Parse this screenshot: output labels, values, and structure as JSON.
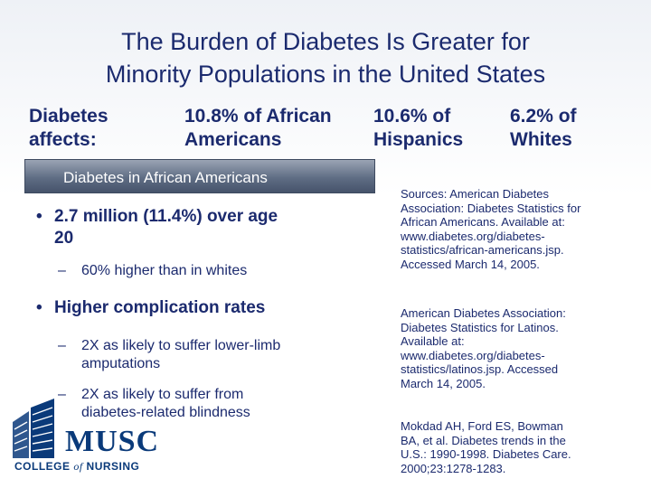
{
  "title": {
    "line1": "The Burden of Diabetes Is Greater for",
    "line2": "Minority Populations in the United States"
  },
  "stats": {
    "lead_line1": "Diabetes",
    "lead_line2": "affects:",
    "african_line1": "10.8% of African",
    "african_line2": "Americans",
    "hispanic_line1": "10.6% of",
    "hispanic_line2": "Hispanics",
    "white_line1": "6.2% of",
    "white_line2": "Whites"
  },
  "banner": {
    "label": "Diabetes in African Americans"
  },
  "bullets": [
    {
      "dot": "•",
      "line1": "2.7 million (11.4%) over age",
      "line2": "20",
      "subs": [
        {
          "dash": "–",
          "line1": "60% higher than in whites"
        }
      ]
    },
    {
      "dot": "•",
      "line1": "Higher complication rates",
      "subs": [
        {
          "dash": "–",
          "line1": "2X as likely to suffer lower-limb",
          "line2": "amputations"
        },
        {
          "dash": "–",
          "line1": "2X as likely to suffer from",
          "line2": "diabetes-related blindness"
        }
      ]
    }
  ],
  "sources": [
    {
      "lines": [
        "Sources: American Diabetes",
        "Association: Diabetes Statistics for",
        "African Americans. Available at:",
        "www.diabetes.org/diabetes-",
        "statistics/african-americans.jsp.",
        "Accessed March 14, 2005."
      ]
    },
    {
      "lines": [
        "American Diabetes Association:",
        "Diabetes Statistics for Latinos.",
        "Available at:",
        "www.diabetes.org/diabetes-",
        "statistics/latinos.jsp. Accessed",
        "March 14, 2005."
      ]
    },
    {
      "lines": [
        "Mokdad AH, Ford ES, Bowman",
        "BA, et al. Diabetes trends in the",
        "U.S.: 1990-1998.  Diabetes Care.",
        "2000;23:1278-1283."
      ]
    }
  ],
  "logo": {
    "word": "MUSC",
    "sub_pre": "COLLEGE ",
    "sub_of": "of",
    "sub_post": " NURSING",
    "color": "#0a3a7a"
  },
  "colors": {
    "text": "#1b2a6e",
    "banner": "#5f6d84"
  }
}
